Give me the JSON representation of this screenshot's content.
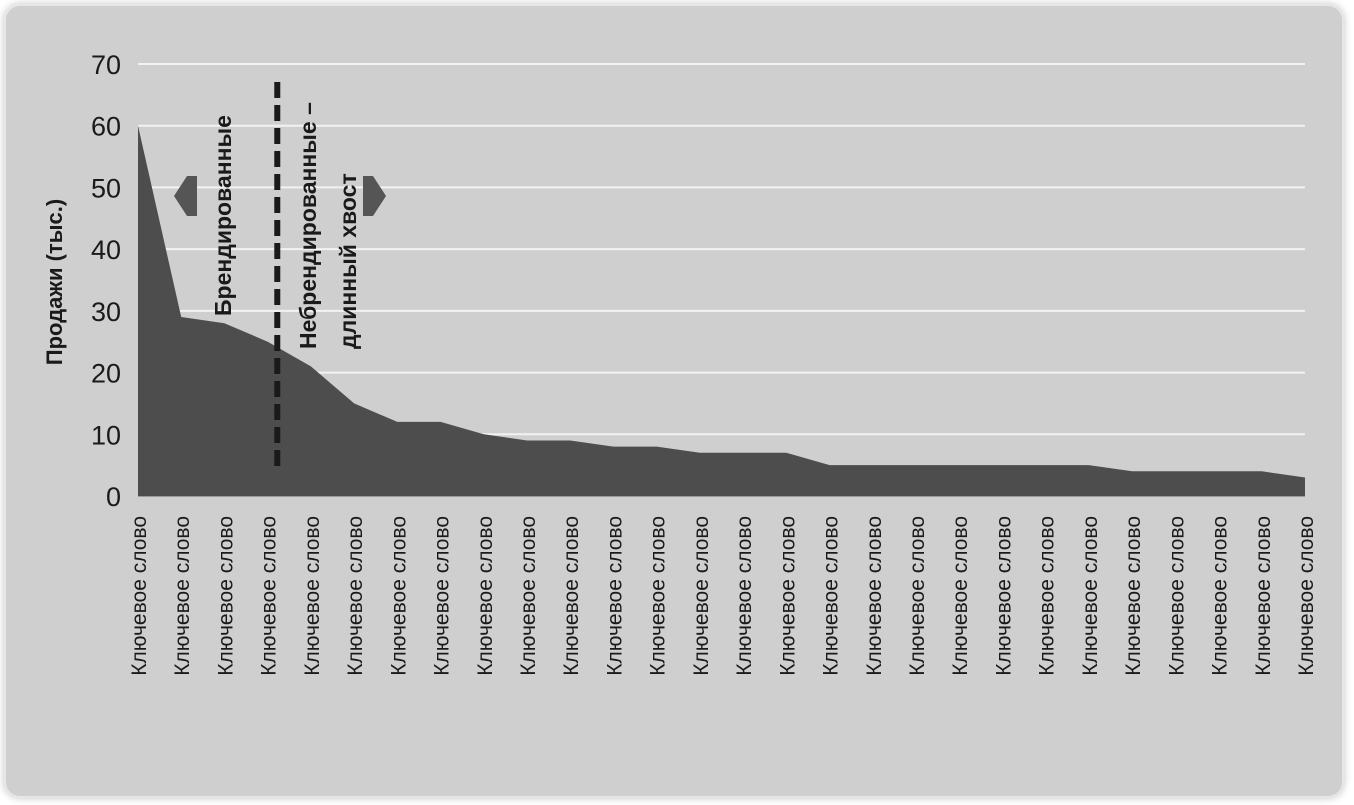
{
  "chart_data": {
    "type": "area",
    "ylabel": "Продажи (тыс.)",
    "ylim": [
      0,
      70
    ],
    "yticks": [
      0,
      10,
      20,
      30,
      40,
      50,
      60,
      70
    ],
    "grid": true,
    "area_color": "#4d4d4d",
    "divider_after_index": 3,
    "categories": [
      "Ключевое слово",
      "Ключевое слово",
      "Ключевое слово",
      "Ключевое слово",
      "Ключевое слово",
      "Ключевое слово",
      "Ключевое слово",
      "Ключевое слово",
      "Ключевое слово",
      "Ключевое слово",
      "Ключевое слово",
      "Ключевое слово",
      "Ключевое слово",
      "Ключевое слово",
      "Ключевое слово",
      "Ключевое слово",
      "Ключевое слово",
      "Ключевое слово",
      "Ключевое слово",
      "Ключевое слово",
      "Ключевое слово",
      "Ключевое слово",
      "Ключевое слово",
      "Ключевое слово",
      "Ключевое слово",
      "Ключевое слово",
      "Ключевое слово",
      "Ключевое слово"
    ],
    "values": [
      60,
      29,
      28,
      25,
      21,
      15,
      12,
      12,
      10,
      9,
      9,
      8,
      8,
      7,
      7,
      7,
      5,
      5,
      5,
      5,
      5,
      5,
      5,
      4,
      4,
      4,
      4,
      3
    ],
    "annotations": {
      "left_label": "Брендированные",
      "right_label_line1": "Небрендированные –",
      "right_label_line2": "длинный хвост"
    }
  }
}
